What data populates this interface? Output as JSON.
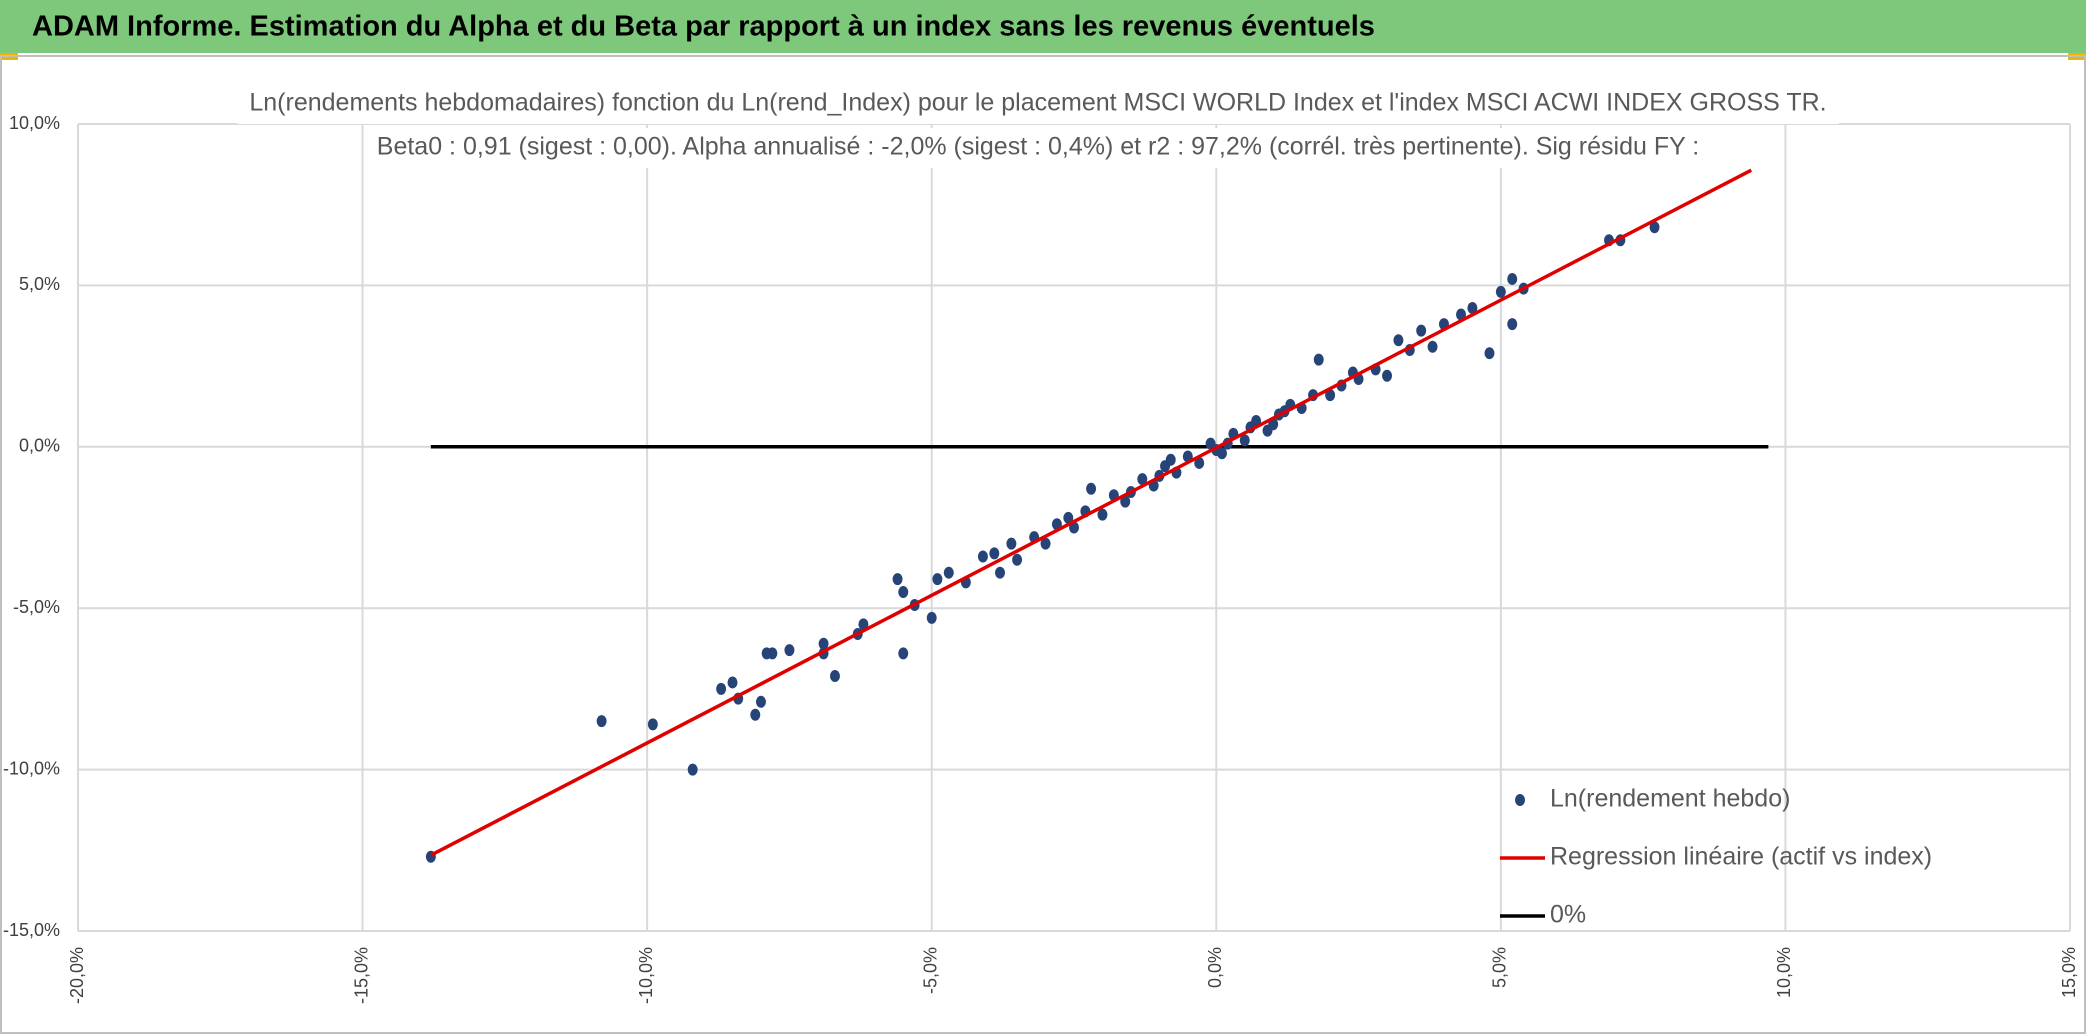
{
  "header": {
    "title": "ADAM Informe. Estimation du Alpha et du Beta par rapport à un index sans les revenus éventuels"
  },
  "chart_data": {
    "type": "scatter",
    "title": "Ln(rendements hebdomadaires) fonction du Ln(rend_Index) pour le placement MSCI WORLD Index et l'index MSCI ACWI INDEX GROSS TR.",
    "subtitle": "Beta0 : 0,91 (sigest : 0,00). Alpha annualisé : -2,0% (sigest : 0,4%) et r2 : 97,2% (corrél. très pertinente). Sig résidu FY :",
    "xlim": [
      -20,
      15
    ],
    "ylim": [
      -15,
      10
    ],
    "xticks": [
      {
        "value": -20,
        "label": "-20,0%"
      },
      {
        "value": -15,
        "label": "-15,0%"
      },
      {
        "value": -10,
        "label": "-10,0%"
      },
      {
        "value": -5,
        "label": "-5,0%"
      },
      {
        "value": 0,
        "label": "0,0%"
      },
      {
        "value": 5,
        "label": "5,0%"
      },
      {
        "value": 10,
        "label": "10,0%"
      },
      {
        "value": 15,
        "label": "15,0%"
      }
    ],
    "yticks": [
      {
        "value": 10,
        "label": "10,0%"
      },
      {
        "value": 5,
        "label": "5,0%"
      },
      {
        "value": 0,
        "label": "0,0%"
      },
      {
        "value": -5,
        "label": "-5,0%"
      },
      {
        "value": -10,
        "label": "-10,0%"
      },
      {
        "value": -15,
        "label": "-15,0%"
      }
    ],
    "grid": true,
    "legend": "bottom-right",
    "series": [
      {
        "name": "Ln(rendement hebdo)",
        "type": "scatter",
        "color": "#264478",
        "x": [
          -13.8,
          -10.8,
          -9.9,
          -9.2,
          -8.7,
          -8.5,
          -8.4,
          -8.1,
          -8.0,
          -7.9,
          -7.8,
          -7.5,
          -6.9,
          -6.9,
          -6.7,
          -6.3,
          -6.2,
          -5.6,
          -5.5,
          -5.5,
          -5.3,
          -5.0,
          -4.9,
          -4.7,
          -4.4,
          -4.1,
          -3.9,
          -3.8,
          -3.6,
          -3.5,
          -3.2,
          -3.0,
          -2.8,
          -2.6,
          -2.5,
          -2.3,
          -2.2,
          -2.0,
          -1.8,
          -1.6,
          -1.5,
          -1.3,
          -1.1,
          -1.0,
          -0.9,
          -0.8,
          -0.7,
          -0.5,
          -0.3,
          -0.1,
          0.0,
          0.1,
          0.2,
          0.3,
          0.5,
          0.6,
          0.7,
          0.9,
          1.0,
          1.1,
          1.2,
          1.3,
          1.5,
          1.7,
          1.8,
          2.0,
          2.2,
          2.4,
          2.5,
          2.8,
          3.0,
          3.2,
          3.4,
          3.6,
          3.8,
          4.0,
          4.3,
          4.5,
          4.8,
          5.0,
          5.2,
          5.2,
          5.4,
          6.9,
          7.1,
          7.7
        ],
        "values": [
          -12.7,
          -8.5,
          -8.6,
          -10.0,
          -7.5,
          -7.3,
          -7.8,
          -8.3,
          -7.9,
          -6.4,
          -6.4,
          -6.3,
          -6.4,
          -6.1,
          -7.1,
          -5.8,
          -5.5,
          -4.1,
          -6.4,
          -4.5,
          -4.9,
          -5.3,
          -4.1,
          -3.9,
          -4.2,
          -3.4,
          -3.3,
          -3.9,
          -3.0,
          -3.5,
          -2.8,
          -3.0,
          -2.4,
          -2.2,
          -2.5,
          -2.0,
          -1.3,
          -2.1,
          -1.5,
          -1.7,
          -1.4,
          -1.0,
          -1.2,
          -0.9,
          -0.6,
          -0.4,
          -0.8,
          -0.3,
          -0.5,
          0.1,
          -0.1,
          -0.2,
          0.1,
          0.4,
          0.2,
          0.6,
          0.8,
          0.5,
          0.7,
          1.0,
          1.1,
          1.3,
          1.2,
          1.6,
          2.7,
          1.6,
          1.9,
          2.3,
          2.1,
          2.4,
          2.2,
          3.3,
          3.0,
          3.6,
          3.1,
          3.8,
          4.1,
          4.3,
          2.9,
          4.8,
          3.8,
          5.2,
          4.9,
          6.4,
          6.4,
          6.8
        ]
      },
      {
        "name": "Regression linéaire (actif vs index)",
        "type": "line",
        "color": "#e00000",
        "x": [
          -13.8,
          9.4
        ],
        "values": [
          -12.65,
          8.57
        ]
      },
      {
        "name": "0%",
        "type": "line",
        "color": "#000000",
        "x": [
          -13.8,
          9.7
        ],
        "values": [
          0,
          0
        ]
      }
    ]
  }
}
